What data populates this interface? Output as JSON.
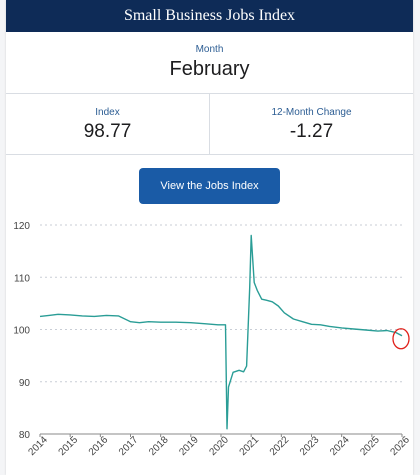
{
  "header": {
    "title": "Small Business Jobs Index"
  },
  "month": {
    "label": "Month",
    "value": "February"
  },
  "stats": {
    "index_label": "Index",
    "index_value": "98.77",
    "change_label": "12-Month Change",
    "change_value": "-1.27"
  },
  "cta": {
    "label": "View the Jobs Index"
  },
  "colors": {
    "header_bg": "#0e2b57",
    "button_bg": "#1a5ba6",
    "line": "#2a9d96",
    "annotation": "#e0201a"
  },
  "chart_data": {
    "type": "line",
    "title": "",
    "xlabel": "",
    "ylabel": "",
    "ylim": [
      80,
      120
    ],
    "xlim": [
      2014,
      2026
    ],
    "yticks": [
      120,
      110,
      100,
      90,
      80
    ],
    "xticks": [
      "2014",
      "2015",
      "2016",
      "2017",
      "2018",
      "2019",
      "2020",
      "2021",
      "2022",
      "2023",
      "2024",
      "2025",
      "2026"
    ],
    "grid": "horizontal dotted",
    "series": [
      {
        "x": [
          2014.0,
          2014.3,
          2014.6,
          2015.0,
          2015.4,
          2015.8,
          2016.2,
          2016.6,
          2017.0,
          2017.3,
          2017.6,
          2018.0,
          2018.5,
          2019.0,
          2019.5,
          2019.9,
          2020.15,
          2020.2,
          2020.25,
          2020.4,
          2020.6,
          2020.75,
          2020.85,
          2020.95,
          2021.0,
          2021.1,
          2021.2,
          2021.35,
          2021.5,
          2021.7,
          2021.9,
          2022.1,
          2022.4,
          2022.7,
          2023.0,
          2023.3,
          2023.6,
          2024.0,
          2024.4,
          2024.8,
          2025.2,
          2025.5,
          2025.8,
          2026.0
        ],
        "y": [
          102.5,
          102.7,
          102.9,
          102.8,
          102.6,
          102.5,
          102.7,
          102.6,
          101.5,
          101.3,
          101.5,
          101.4,
          101.4,
          101.3,
          101.1,
          100.9,
          100.9,
          81,
          89,
          91.8,
          92.2,
          91.9,
          93,
          108,
          118,
          109,
          107.5,
          105.8,
          105.6,
          105.3,
          104.5,
          103.2,
          102.0,
          101.5,
          101.0,
          100.9,
          100.6,
          100.3,
          100.1,
          99.9,
          99.7,
          99.8,
          99.4,
          98.8
        ]
      }
    ],
    "annotation": "red circle around most recent data point"
  }
}
